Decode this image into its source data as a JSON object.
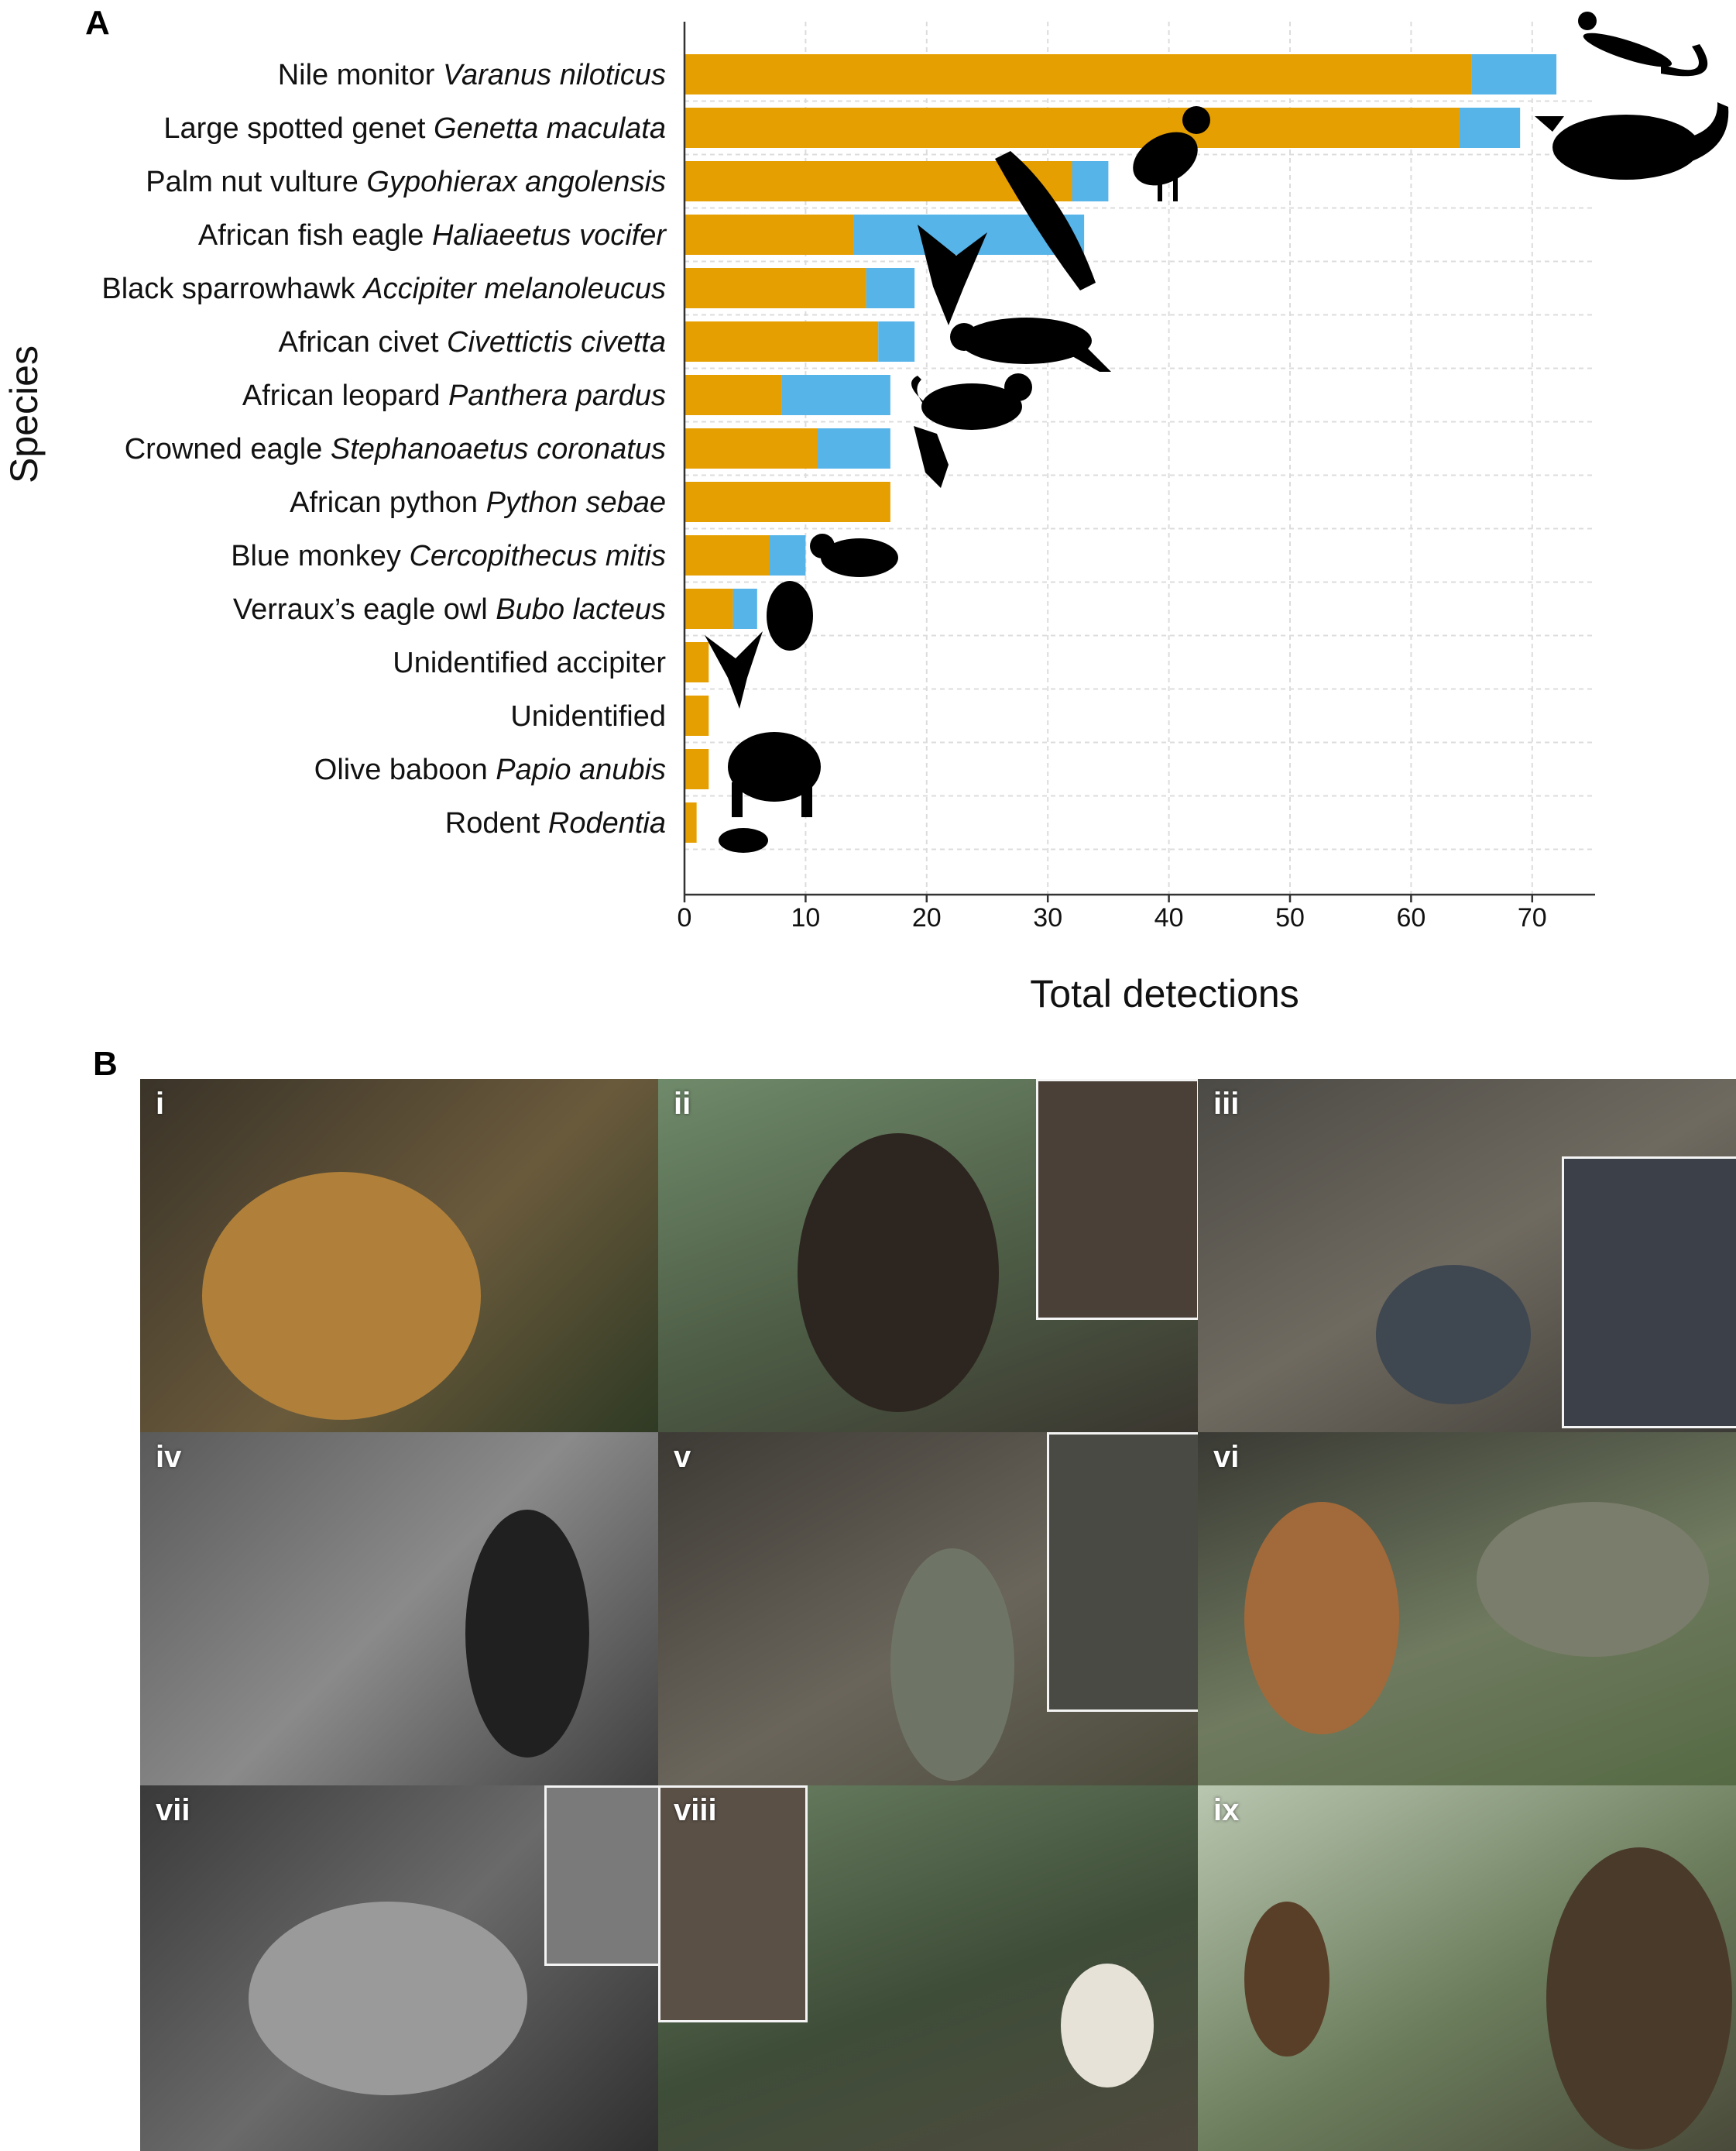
{
  "panel_a_label": "A",
  "panel_b_label": "B",
  "chart_data": {
    "type": "bar",
    "orientation": "horizontal",
    "stacked": true,
    "title": "",
    "xlabel": "Total detections",
    "ylabel": "Species",
    "xlim": [
      0,
      75
    ],
    "xticks": [
      0,
      10,
      20,
      30,
      40,
      50,
      60,
      70
    ],
    "grid": true,
    "categories": [
      {
        "common": "Nile monitor",
        "scientific": "Varanus niloticus",
        "silhouette": "lizard-silhouette-icon"
      },
      {
        "common": "Large spotted genet",
        "scientific": "Genetta maculata",
        "silhouette": "genet-silhouette-icon"
      },
      {
        "common": "Palm nut vulture",
        "scientific": "Gypohierax angolensis",
        "silhouette": "vulture-silhouette-icon"
      },
      {
        "common": "African fish eagle",
        "scientific": "Haliaeetus vocifer",
        "silhouette": "fish-eagle-silhouette-icon"
      },
      {
        "common": "Black sparrowhawk",
        "scientific": "Accipiter melanoleucus",
        "silhouette": "sparrowhawk-silhouette-icon"
      },
      {
        "common": "African civet",
        "scientific": "Civettictis civetta",
        "silhouette": "civet-silhouette-icon"
      },
      {
        "common": "African leopard",
        "scientific": "Panthera pardus",
        "silhouette": "leopard-silhouette-icon"
      },
      {
        "common": "Crowned eagle",
        "scientific": "Stephanoaetus coronatus",
        "silhouette": "crowned-eagle-silhouette-icon"
      },
      {
        "common": "African python",
        "scientific": "Python sebae",
        "silhouette": "python-silhouette-icon"
      },
      {
        "common": "Blue monkey",
        "scientific": "Cercopithecus mitis",
        "silhouette": "monkey-silhouette-icon"
      },
      {
        "common": "Verraux’s eagle owl",
        "scientific": "Bubo lacteus",
        "silhouette": "owl-silhouette-icon"
      },
      {
        "common": "Unidentified accipiter",
        "scientific": "",
        "silhouette": "accipiter-silhouette-icon"
      },
      {
        "common": "Unidentified",
        "scientific": "",
        "silhouette": ""
      },
      {
        "common": "Olive baboon",
        "scientific": "Papio anubis",
        "silhouette": "baboon-silhouette-icon"
      },
      {
        "common": "Rodent",
        "scientific": "Rodentia",
        "silhouette": "rodent-silhouette-icon"
      }
    ],
    "series": [
      {
        "values": [
          65,
          64,
          32,
          14,
          15,
          16,
          8,
          11,
          17,
          7,
          4,
          2,
          2,
          2,
          1
        ],
        "color": "#E69F00"
      },
      {
        "values": [
          7,
          5,
          3,
          19,
          4,
          3,
          9,
          6,
          0,
          3,
          2,
          0,
          0,
          0,
          0
        ],
        "color": "#56B4E9"
      }
    ]
  },
  "photos": [
    {
      "label": "i",
      "subject": "leopard-photo"
    },
    {
      "label": "ii",
      "subject": "crowned-eagle-photo"
    },
    {
      "label": "iii",
      "subject": "blue-monkey-photo"
    },
    {
      "label": "iv",
      "subject": "genet-night-photo"
    },
    {
      "label": "v",
      "subject": "nile-monitor-photo"
    },
    {
      "label": "vi",
      "subject": "sparrowhawk-monitor-photo"
    },
    {
      "label": "vii",
      "subject": "civet-night-photo"
    },
    {
      "label": "viii",
      "subject": "palm-nut-vulture-photo"
    },
    {
      "label": "ix",
      "subject": "olive-baboon-photo"
    }
  ]
}
